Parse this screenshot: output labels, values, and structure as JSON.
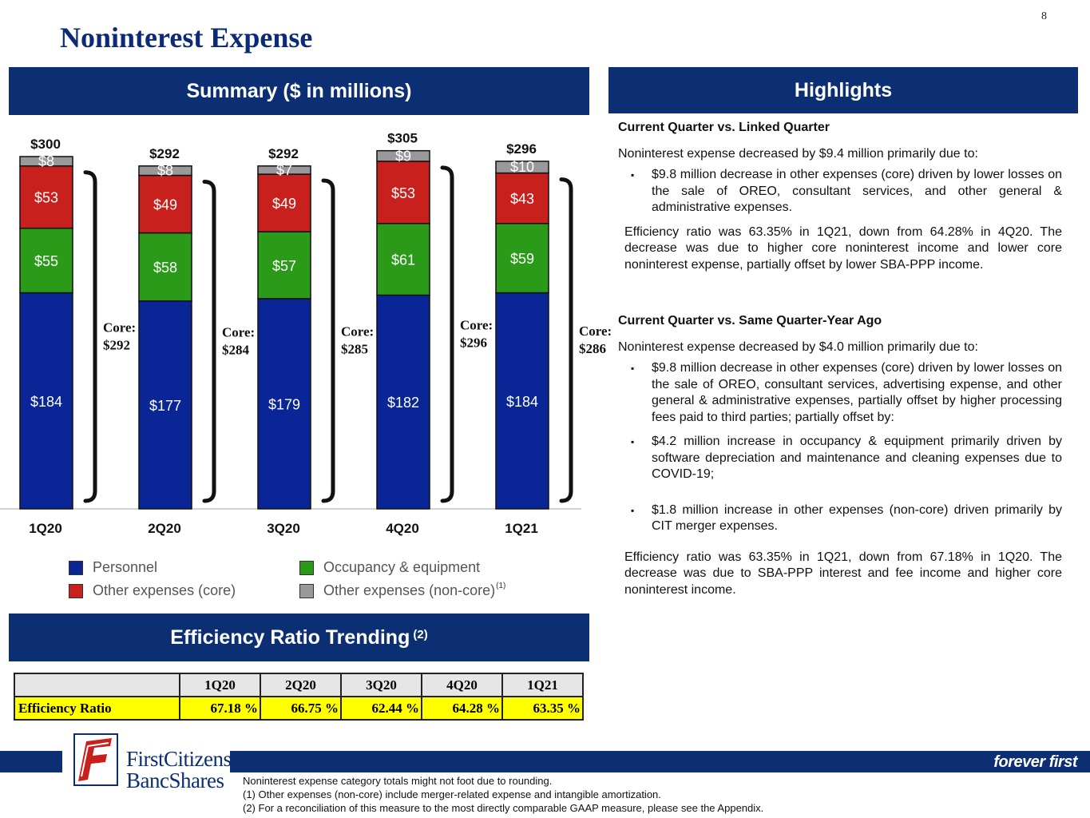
{
  "page_number": "8",
  "title": "Noninterest Expense",
  "summary_header": "Summary ($ in millions)",
  "highlights_header": "Highlights",
  "efficiency_header": "Efficiency Ratio Trending",
  "efficiency_header_sup": "(2)",
  "colors": {
    "navy": "#0c2f74",
    "personnel": "#0a2596",
    "occupancy": "#2a9a18",
    "other_core": "#c8201c",
    "other_noncore": "#999999",
    "highlight_yellow": "#ffff00"
  },
  "chart_data": {
    "type": "bar",
    "stacked": true,
    "title": "Summary ($ in millions)",
    "categories": [
      "1Q20",
      "2Q20",
      "3Q20",
      "4Q20",
      "1Q21"
    ],
    "series": [
      {
        "name": "Personnel",
        "color": "#0a2596",
        "values": [
          184,
          177,
          179,
          182,
          184
        ],
        "labels": [
          "$184",
          "$177",
          "$179",
          "$182",
          "$184"
        ]
      },
      {
        "name": "Occupancy & equipment",
        "color": "#2a9a18",
        "values": [
          55,
          58,
          57,
          61,
          59
        ],
        "labels": [
          "$55",
          "$58",
          "$57",
          "$61",
          "$59"
        ]
      },
      {
        "name": "Other expenses (core)",
        "color": "#c8201c",
        "values": [
          53,
          49,
          49,
          53,
          43
        ],
        "labels": [
          "$53",
          "$49",
          "$49",
          "$53",
          "$43"
        ]
      },
      {
        "name": "Other expenses (non-core)",
        "sup": "(1)",
        "color": "#999999",
        "values": [
          8,
          8,
          7,
          9,
          10
        ],
        "labels": [
          "$8",
          "$8",
          "$7",
          "$9",
          "$10"
        ]
      }
    ],
    "totals": [
      "$300",
      "$292",
      "$292",
      "$305",
      "$296"
    ],
    "core_label": "Core:",
    "core_totals": [
      "$292",
      "$284",
      "$285",
      "$296",
      "$286"
    ],
    "ylim": [
      0,
      305
    ]
  },
  "efficiency_table": {
    "columns": [
      "1Q20",
      "2Q20",
      "3Q20",
      "4Q20",
      "1Q21"
    ],
    "row_label": "Efficiency Ratio",
    "values": [
      "67.18 %",
      "66.75 %",
      "62.44 %",
      "64.28 %",
      "63.35 %"
    ]
  },
  "highlights": {
    "section1_title": "Current Quarter vs. Linked Quarter",
    "section1_intro": "Noninterest expense decreased by $9.4 million primarily due to:",
    "section1_bullets": [
      "$9.8 million decrease in other expenses (core) driven by lower losses on the sale of OREO, consultant services, and other general & administrative expenses."
    ],
    "section1_para": "Efficiency ratio was 63.35% in 1Q21, down from 64.28% in 4Q20.  The decrease was due to higher core noninterest income and lower core noninterest expense, partially offset by lower SBA-PPP income.",
    "section2_title": "Current Quarter vs. Same Quarter-Year Ago",
    "section2_intro": "Noninterest expense decreased by $4.0 million primarily due to:",
    "section2_bullets": [
      "$9.8 million decrease in other expenses (core) driven by lower losses on the sale of OREO, consultant services, advertising expense, and other general & administrative expenses, partially offset by higher processing fees paid to third parties; partially offset by:",
      "$4.2 million increase in occupancy & equipment primarily driven by software depreciation and maintenance and cleaning expenses due to COVID-19;",
      "$1.8 million increase in other expenses (non-core) driven primarily by CIT merger expenses."
    ],
    "section2_para": "Efficiency ratio was 63.35% in 1Q21, down from 67.18% in 1Q20.  The decrease was due to SBA-PPP interest and fee income and higher core noninterest income."
  },
  "logo": {
    "line1": "FirstCitizens",
    "line2": "BancShares"
  },
  "tagline": "forever first",
  "footnotes": [
    "Noninterest expense category totals might not foot due to rounding.",
    "(1) Other expenses (non-core) include merger-related expense and intangible amortization.",
    "(2) For a reconciliation of this measure to the most directly comparable GAAP measure, please see the Appendix."
  ]
}
